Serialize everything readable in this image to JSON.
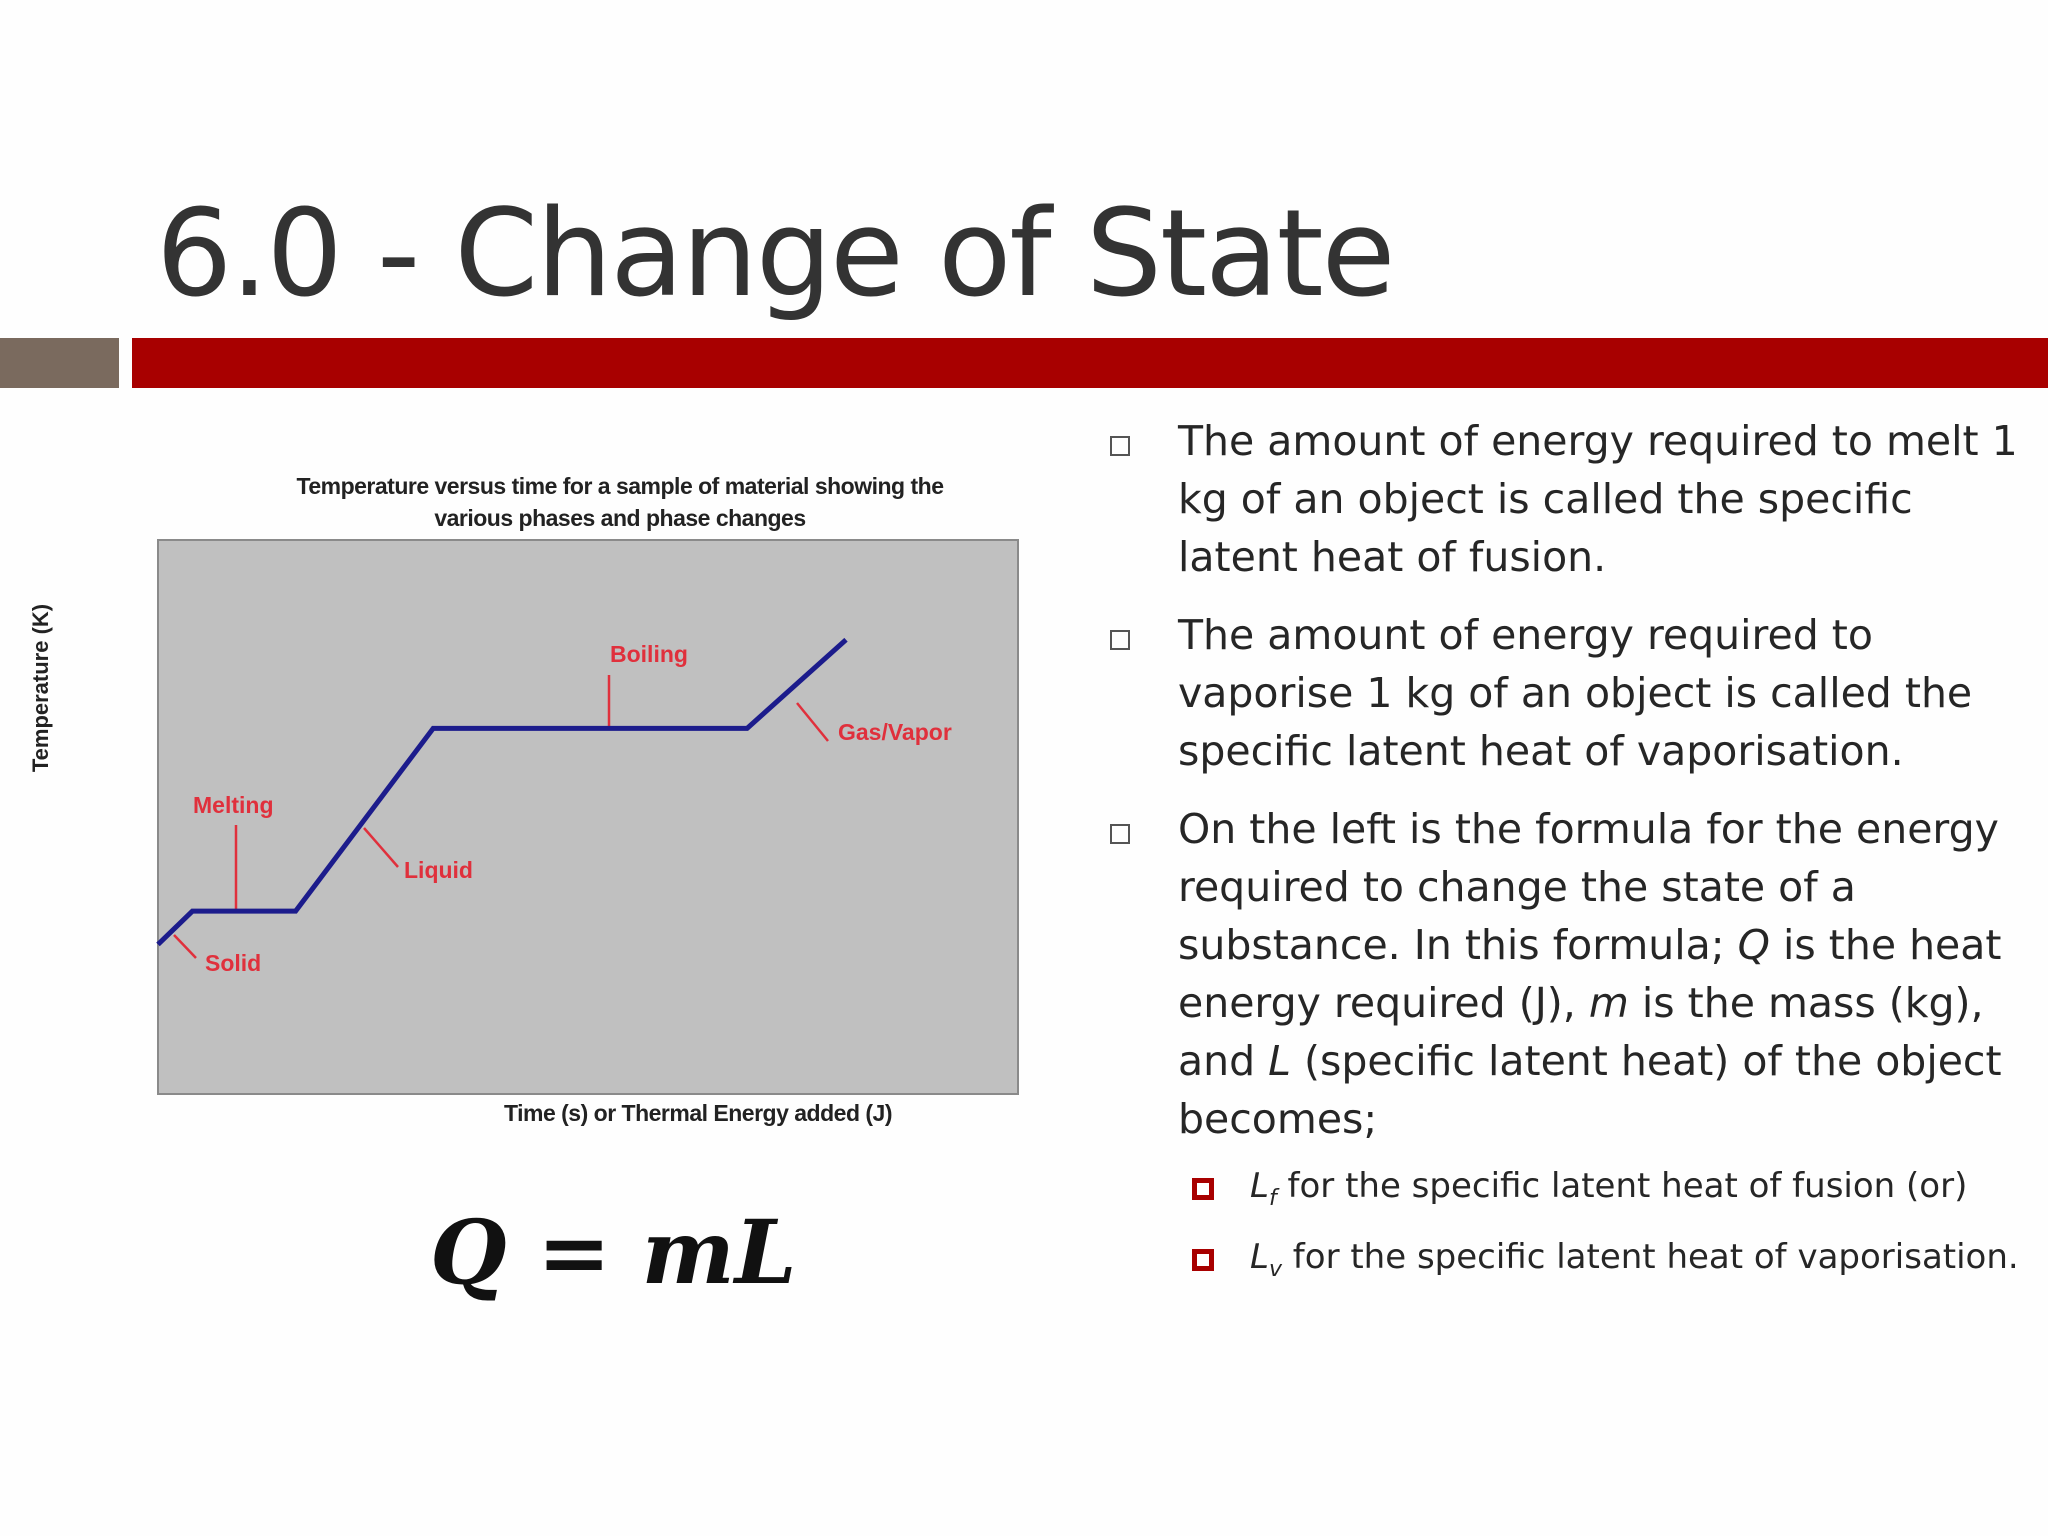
{
  "slide": {
    "title": "6.0 - Change of State",
    "accent_color": "#a80000",
    "secondary_color": "#7a6a5e"
  },
  "chart": {
    "title_line1": "Temperature versus time for a sample of material showing the",
    "title_line2": "various phases and phase changes",
    "xlabel": "Time (s) or Thermal Energy added (J)",
    "ylabel": "Temperature (K)",
    "labels": {
      "melting": "Melting",
      "solid": "Solid",
      "liquid": "Liquid",
      "boiling": "Boiling",
      "gas": "Gas/Vapor"
    }
  },
  "chart_data": {
    "type": "line",
    "title": "Temperature versus time for a sample of material showing the various phases and phase changes",
    "xlabel": "Time (s) or Thermal Energy added (J)",
    "ylabel": "Temperature (K)",
    "series": [
      {
        "x": [
          0,
          4,
          16,
          32,
          68,
          68.5,
          80
        ],
        "y": [
          27,
          33,
          33,
          66,
          66,
          66,
          82
        ]
      }
    ],
    "background": "#c0c0c0",
    "line_color": "#1c1c8c",
    "annotation_color": "#e0303c",
    "grid": false
  },
  "formula": {
    "text": "Q = mL"
  },
  "bullets": [
    {
      "text": "The amount of energy required to melt 1 kg of an object is called the specific latent heat of fusion."
    },
    {
      "text": "The amount of energy required to vaporise 1 kg of an object is called the specific latent heat of vaporisation."
    },
    {
      "p1": "On the left is the formula for the energy required to change the state of a substance. In this formula; ",
      "q": "Q",
      "p2": " is the heat energy required (J), ",
      "m": "m",
      "p3": " is the mass (kg), and ",
      "l": "L",
      "p4": " (specific latent heat) of the object becomes;"
    }
  ],
  "subbullets": [
    {
      "sym": "L",
      "subscript": "f",
      "text": " for the specific latent heat of fusion (or)"
    },
    {
      "sym": "L",
      "subscript": "v",
      "text": " for the specific latent heat of vaporisation."
    }
  ]
}
